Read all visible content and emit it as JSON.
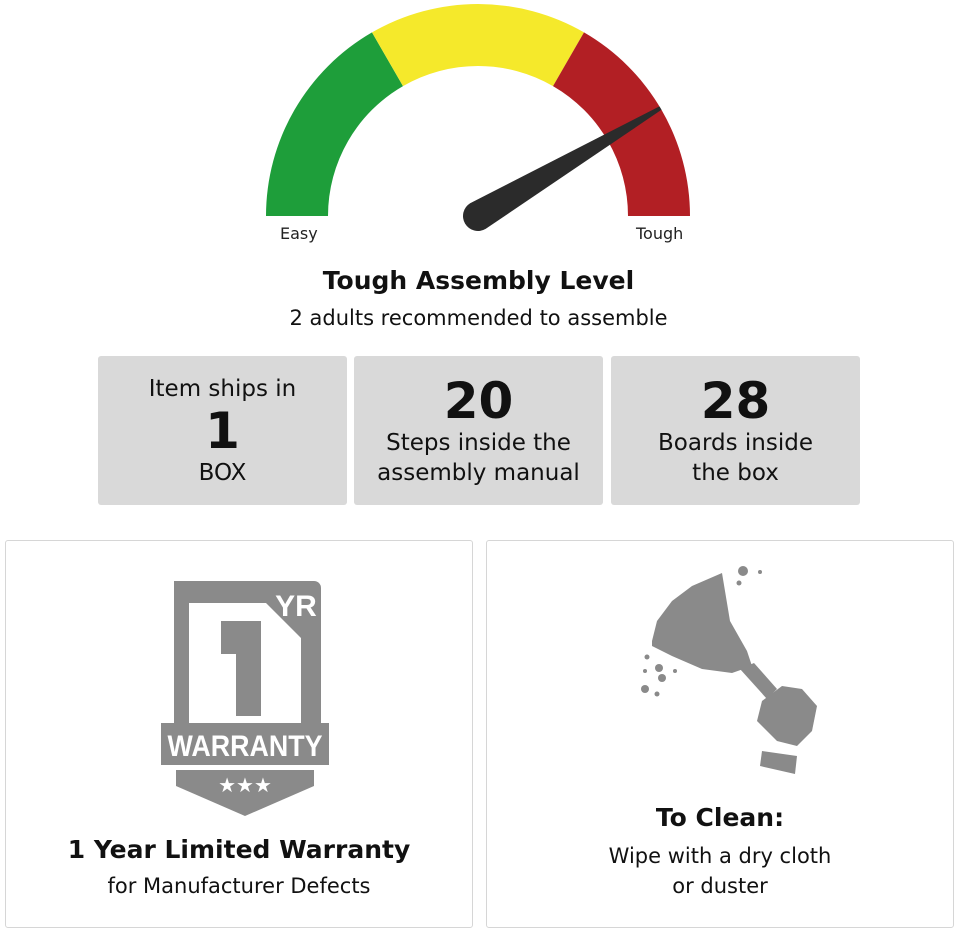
{
  "gauge": {
    "label_min": "Easy",
    "label_max": "Tough",
    "level": 0.83,
    "colors": {
      "easy": "#1e9e3a",
      "medium": "#f5e92b",
      "tough": "#b21f24",
      "needle": "#2b2b2b"
    }
  },
  "assembly": {
    "title": "Tough Assembly Level",
    "subtitle": "2 adults recommended to assemble"
  },
  "stats": [
    {
      "top": "Item ships in",
      "number": "1",
      "bottom": "BOX"
    },
    {
      "number": "20",
      "line1": "Steps inside the",
      "line2": "assembly manual"
    },
    {
      "number": "28",
      "line1": "Boards inside",
      "line2": "the box"
    }
  ],
  "warranty": {
    "badge_number": "1",
    "badge_unit": "YR",
    "badge_text": "WARRANTY",
    "title": "1 Year Limited Warranty",
    "text": "for Manufacturer Defects"
  },
  "cleaning": {
    "title": "To Clean:",
    "line1": "Wipe with a dry cloth",
    "line2": "or duster"
  },
  "icon_color": "#8a8a8a"
}
